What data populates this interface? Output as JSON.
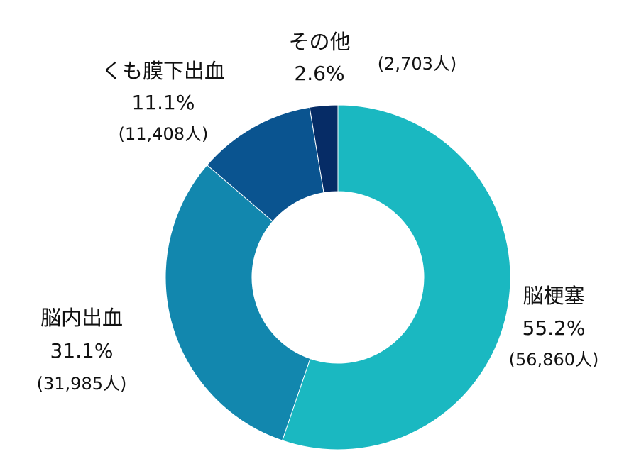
{
  "chart_data": {
    "type": "pie",
    "donut": true,
    "slices": [
      {
        "label": "脳梗塞",
        "percent": "55.2%",
        "value": 56860,
        "count_text": "(56,860人)",
        "color": "#1ab8c1"
      },
      {
        "label": "脳内出血",
        "percent": "31.1%",
        "value": 31985,
        "count_text": "(31,985人)",
        "color": "#1287ae"
      },
      {
        "label": "くも膜下出血",
        "percent": "11.1%",
        "value": 11408,
        "count_text": "(11,408人)",
        "color": "#0a5490"
      },
      {
        "label": "その他",
        "percent": "2.6%",
        "value": 2703,
        "count_text": "(2,703人)",
        "color": "#062c66"
      }
    ]
  }
}
